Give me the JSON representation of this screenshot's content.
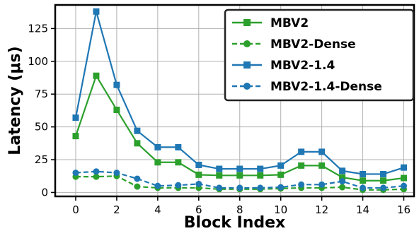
{
  "chart_data": {
    "type": "line",
    "title": "",
    "xlabel": "Block Index",
    "ylabel": "Latency (μs)",
    "xlim": [
      -1,
      16.5
    ],
    "ylim": [
      -3,
      143
    ],
    "xticks": [
      0,
      2,
      4,
      6,
      8,
      10,
      12,
      14,
      16
    ],
    "yticks": [
      0,
      25,
      50,
      75,
      100,
      125
    ],
    "grid": true,
    "legend_position": "top-right",
    "x": [
      0,
      1,
      2,
      3,
      4,
      5,
      6,
      7,
      8,
      9,
      10,
      11,
      12,
      13,
      14,
      15,
      16
    ],
    "series": [
      {
        "name": "MBV2",
        "color": "#2ca02c",
        "linestyle": "solid",
        "marker": "square",
        "values": [
          43,
          89,
          63,
          37.5,
          23,
          23,
          13.5,
          13,
          13,
          13,
          13.5,
          20.5,
          20.5,
          11.5,
          9,
          9,
          11
        ]
      },
      {
        "name": "MBV2-Dense",
        "color": "#2ca02c",
        "linestyle": "dashed",
        "marker": "circle",
        "values": [
          12,
          12,
          12.5,
          4.5,
          3.5,
          3.5,
          3.5,
          2.5,
          2.5,
          2.5,
          3,
          3.5,
          3.5,
          4,
          2,
          2,
          2.5
        ]
      },
      {
        "name": "MBV2-1.4",
        "color": "#1f77b4",
        "linestyle": "solid",
        "marker": "square",
        "values": [
          57,
          138,
          82,
          47,
          34.5,
          34.5,
          21,
          18,
          18,
          18,
          20.5,
          31,
          31,
          16.5,
          14,
          14,
          19
        ]
      },
      {
        "name": "MBV2-1.4-Dense",
        "color": "#1f77b4",
        "linestyle": "dashed",
        "marker": "circle",
        "values": [
          15,
          16,
          15,
          10.5,
          5,
          5.5,
          6.5,
          3.5,
          3.5,
          3.5,
          4,
          6,
          6,
          8.5,
          3.5,
          3.5,
          5
        ]
      }
    ]
  }
}
